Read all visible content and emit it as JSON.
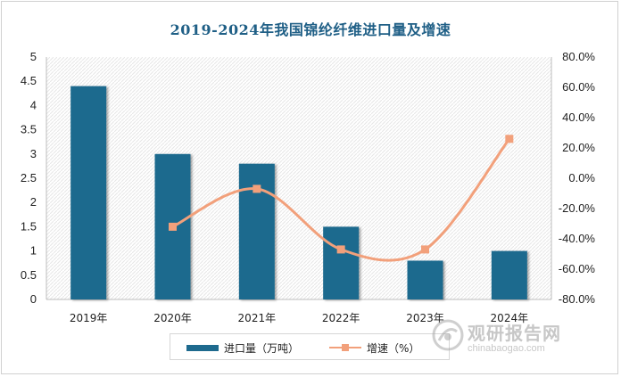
{
  "chart_data": {
    "type": "bar",
    "title": "2019-2024年我国锦纶纤维进口量及增速",
    "categories": [
      "2019年",
      "2020年",
      "2021年",
      "2022年",
      "2023年",
      "2024年"
    ],
    "series": [
      {
        "name": "进口量（万吨）",
        "type": "bar",
        "axis": "left",
        "values": [
          4.4,
          3.0,
          2.8,
          1.5,
          0.8,
          1.0
        ]
      },
      {
        "name": "增速（%）",
        "type": "line",
        "axis": "right",
        "values": [
          null,
          -32.0,
          -7.0,
          -47.0,
          -47.0,
          26.0
        ]
      }
    ],
    "y_left": {
      "min": 0,
      "max": 5,
      "step": 0.5,
      "ticks": [
        "0",
        "0.5",
        "1",
        "1.5",
        "2",
        "2.5",
        "3",
        "3.5",
        "4",
        "4.5",
        "5"
      ]
    },
    "y_right": {
      "min": -80,
      "max": 80,
      "step": 20,
      "ticks": [
        "-80.0%",
        "-60.0%",
        "-40.0%",
        "-20.0%",
        "0.0%",
        "20.0%",
        "40.0%",
        "60.0%",
        "80.0%"
      ]
    },
    "legend_position": "bottom",
    "colors": {
      "bar": "#1e6a8e",
      "line": "#f2a07b"
    }
  },
  "watermark": {
    "brand": "观研报告网",
    "url": "chinabaogao.com"
  }
}
